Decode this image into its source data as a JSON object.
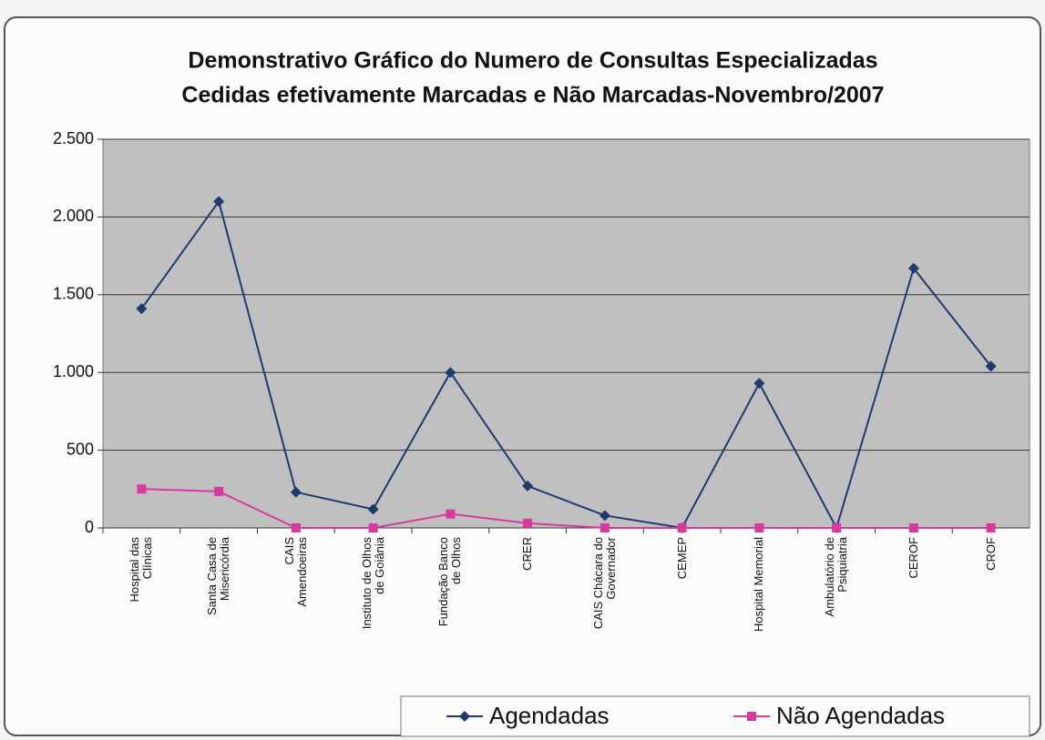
{
  "chart_data": {
    "type": "line",
    "title": [
      "Demonstrativo Gráfico do Numero de Consultas Especializadas",
      "Cedidas efetivamente Marcadas e Não Marcadas-Novembro/2007"
    ],
    "categories": [
      "Hospital das Clínicas",
      "Santa Casa de Misericórdia",
      "CAIS Amendoeiras",
      "Instituto de Olhos de Goiânia",
      "Fundação Banco de Olhos",
      "CRER",
      "CAIS Chácara do Governador",
      "CEMEP",
      "Hospital Memorial",
      "Ambulatório de Psiquiatria",
      "CEROF",
      "CROF"
    ],
    "series": [
      {
        "name": "Agendadas",
        "color": "#1f3a6e",
        "marker": "diamond",
        "values": [
          1410,
          2100,
          230,
          120,
          1000,
          270,
          80,
          0,
          930,
          0,
          1670,
          1040
        ]
      },
      {
        "name": "Não Agendadas",
        "color": "#d63a9e",
        "marker": "square",
        "values": [
          250,
          235,
          0,
          0,
          90,
          30,
          0,
          0,
          0,
          0,
          0,
          0
        ]
      }
    ],
    "ylim": [
      0,
      2500
    ],
    "yticks": [
      0,
      500,
      {
        "value": 1000,
        "label": "1.000"
      },
      {
        "value": 1500,
        "label": "1.500"
      },
      {
        "value": 2000,
        "label": "2.000"
      },
      {
        "value": 2500,
        "label": "2.500"
      }
    ],
    "grid": true,
    "legend": "bottom-right"
  }
}
